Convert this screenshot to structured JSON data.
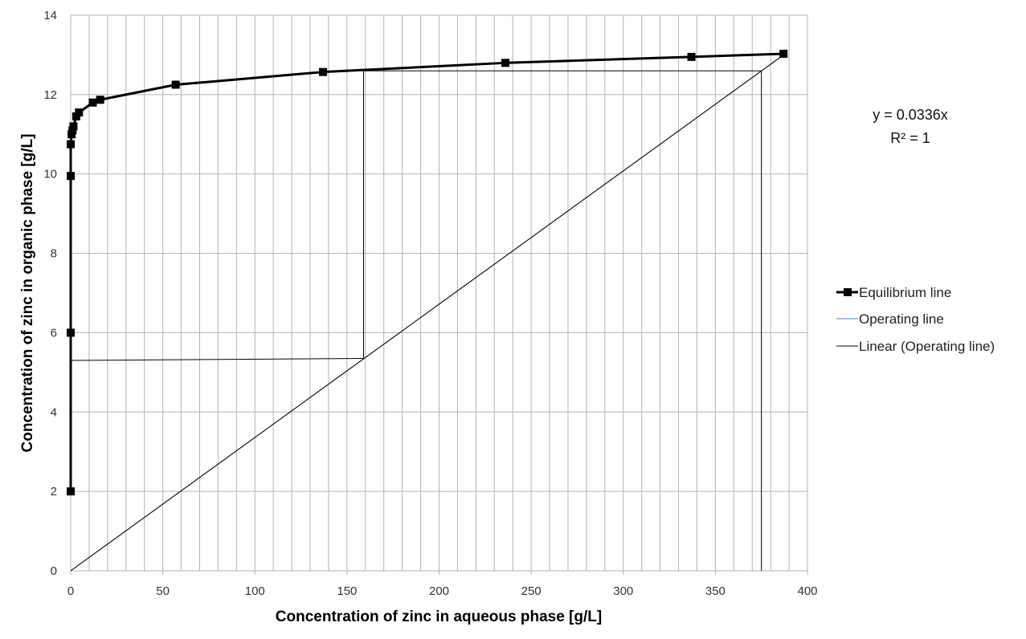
{
  "chart_data": {
    "type": "line",
    "xlabel": "Concentration of zinc in aqueous phase [g/L]",
    "ylabel": "Concentration of zinc in organic phase [g/L]",
    "xlim": [
      0,
      400
    ],
    "ylim": [
      0,
      14
    ],
    "x_ticks": [
      "0",
      "50",
      "100",
      "150",
      "200",
      "250",
      "300",
      "350",
      "400"
    ],
    "y_ticks": [
      "0",
      "2",
      "4",
      "6",
      "8",
      "10",
      "12",
      "14"
    ],
    "grid": "on",
    "legend_position": "right",
    "series": [
      {
        "name": "Equilibrium line",
        "color": "#000000",
        "marker": "square",
        "x": [
          0,
          0,
          0,
          0,
          0.5,
          1,
          1.5,
          3,
          4.5,
          12,
          16,
          57,
          137,
          236,
          337,
          387
        ],
        "y": [
          2,
          6,
          9.95,
          10.75,
          11.0,
          11.1,
          11.2,
          11.45,
          11.55,
          11.8,
          11.87,
          12.25,
          12.57,
          12.8,
          12.95,
          13.03
        ]
      },
      {
        "name": "Operating line",
        "color": "#4f81bd",
        "x": [
          0,
          387
        ],
        "y": [
          0,
          13.0
        ]
      },
      {
        "name": "Linear (Operating line)",
        "color": "#000000",
        "x": [
          0,
          387
        ],
        "y": [
          0,
          13.0
        ]
      }
    ],
    "construction_lines": [
      {
        "x": [
          0,
          159
        ],
        "y": [
          5.3,
          5.35
        ]
      },
      {
        "x": [
          159,
          159
        ],
        "y": [
          5.35,
          12.6
        ]
      },
      {
        "x": [
          159,
          375
        ],
        "y": [
          12.6,
          12.6
        ]
      },
      {
        "x": [
          375,
          375
        ],
        "y": [
          12.6,
          0
        ]
      }
    ],
    "trendline_label": {
      "equation": "y = 0.0336x",
      "r2": "R² = 1"
    }
  }
}
